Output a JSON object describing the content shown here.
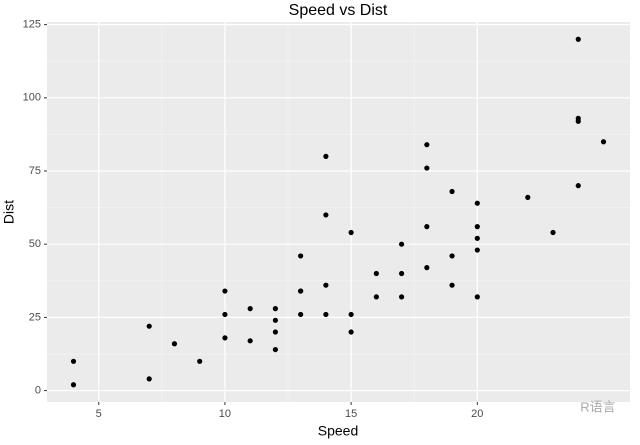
{
  "chart_data": {
    "type": "scatter",
    "title": "Speed vs Dist",
    "x_label": "Speed",
    "y_label": "Dist",
    "x": [
      4,
      4,
      7,
      7,
      8,
      9,
      10,
      10,
      10,
      11,
      11,
      12,
      12,
      12,
      12,
      13,
      13,
      13,
      13,
      14,
      14,
      14,
      14,
      15,
      15,
      15,
      16,
      16,
      17,
      17,
      17,
      18,
      18,
      18,
      18,
      19,
      19,
      19,
      20,
      20,
      20,
      20,
      20,
      22,
      23,
      24,
      24,
      24,
      24,
      25
    ],
    "series": [
      {
        "color": "#000000",
        "values": [
          2,
          10,
          4,
          22,
          16,
          10,
          18,
          26,
          34,
          17,
          28,
          14,
          20,
          24,
          28,
          26,
          34,
          34,
          46,
          26,
          36,
          60,
          80,
          20,
          26,
          54,
          32,
          40,
          32,
          40,
          50,
          42,
          56,
          76,
          84,
          36,
          46,
          68,
          32,
          48,
          52,
          56,
          64,
          66,
          54,
          70,
          92,
          93,
          120,
          85
        ]
      }
    ],
    "xlim": [
      2.95,
      26.05
    ],
    "ylim": [
      -3.9,
      125.9
    ],
    "xticks": [
      5,
      10,
      15,
      20
    ],
    "yticks": [
      0,
      25,
      50,
      75,
      100,
      125
    ],
    "grid": true,
    "watermark": "R语言"
  }
}
